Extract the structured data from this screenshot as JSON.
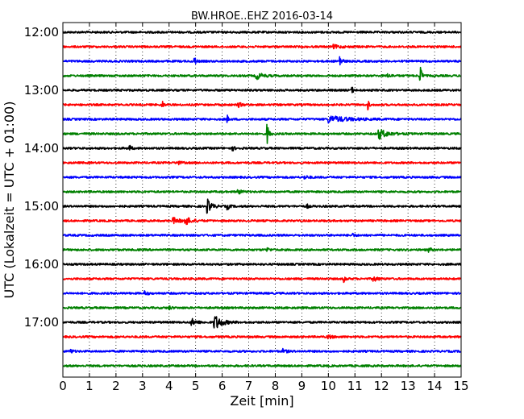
{
  "chart_data": {
    "type": "line",
    "title": "BW.HROE..EHZ 2016-03-14",
    "xlabel": "Zeit  [min]",
    "ylabel": "UTC (Lokalzeit = UTC + 01:00)",
    "xlim": [
      0,
      15
    ],
    "x_ticks": [
      "0",
      "1",
      "2",
      "3",
      "4",
      "5",
      "6",
      "7",
      "8",
      "9",
      "10",
      "11",
      "12",
      "13",
      "14",
      "15"
    ],
    "y_ticks": [
      "12:00",
      "13:00",
      "14:00",
      "15:00",
      "16:00",
      "17:00"
    ],
    "grid": "vertical dotted",
    "trace_interval_min": 15,
    "colors": [
      "#000000",
      "#ff0000",
      "#0000ff",
      "#008000"
    ],
    "series": [
      {
        "start": "12:00",
        "color": "#000000",
        "events": []
      },
      {
        "start": "12:15",
        "color": "#ff0000",
        "events": [
          {
            "t": 10.2,
            "amp": 0.2,
            "dur": 0.6
          }
        ]
      },
      {
        "start": "12:30",
        "color": "#0000ff",
        "events": [
          {
            "t": 4.95,
            "amp": 0.6,
            "dur": 0.15
          },
          {
            "t": 10.45,
            "amp": 0.8,
            "dur": 0.15
          }
        ]
      },
      {
        "start": "12:45",
        "color": "#008000",
        "events": [
          {
            "t": 7.3,
            "amp": 0.45,
            "dur": 0.5
          },
          {
            "t": 12.2,
            "amp": 0.2,
            "dur": 0.4
          },
          {
            "t": 13.45,
            "amp": 2.0,
            "dur": 0.12
          }
        ]
      },
      {
        "start": "13:00",
        "color": "#000000",
        "events": [
          {
            "t": 10.9,
            "amp": 0.4,
            "dur": 0.1
          }
        ]
      },
      {
        "start": "13:15",
        "color": "#ff0000",
        "events": [
          {
            "t": 3.75,
            "amp": 0.5,
            "dur": 0.1
          },
          {
            "t": 6.6,
            "amp": 0.3,
            "dur": 0.3
          },
          {
            "t": 11.5,
            "amp": 0.6,
            "dur": 0.1
          }
        ]
      },
      {
        "start": "13:30",
        "color": "#0000ff",
        "events": [
          {
            "t": 6.2,
            "amp": 0.45,
            "dur": 0.1
          },
          {
            "t": 10.0,
            "amp": 0.45,
            "dur": 1.6
          }
        ]
      },
      {
        "start": "13:45",
        "color": "#008000",
        "events": [
          {
            "t": 7.7,
            "amp": 1.3,
            "dur": 0.15
          },
          {
            "t": 11.9,
            "amp": 0.7,
            "dur": 0.7
          }
        ]
      },
      {
        "start": "14:00",
        "color": "#000000",
        "events": [
          {
            "t": 2.5,
            "amp": 0.5,
            "dur": 0.15
          },
          {
            "t": 6.4,
            "amp": 0.25,
            "dur": 0.2
          }
        ]
      },
      {
        "start": "14:15",
        "color": "#ff0000",
        "events": [
          {
            "t": 4.3,
            "amp": 0.25,
            "dur": 0.3
          }
        ]
      },
      {
        "start": "14:30",
        "color": "#0000ff",
        "events": [
          {
            "t": 9.1,
            "amp": 0.2,
            "dur": 0.4
          }
        ]
      },
      {
        "start": "14:45",
        "color": "#008000",
        "events": [
          {
            "t": 6.6,
            "amp": 0.3,
            "dur": 0.3
          }
        ]
      },
      {
        "start": "15:00",
        "color": "#000000",
        "events": [
          {
            "t": 5.45,
            "amp": 0.9,
            "dur": 0.35
          },
          {
            "t": 6.2,
            "amp": 0.4,
            "dur": 0.2
          },
          {
            "t": 9.2,
            "amp": 0.3,
            "dur": 0.1
          }
        ]
      },
      {
        "start": "15:15",
        "color": "#ff0000",
        "events": [
          {
            "t": 4.15,
            "amp": 0.4,
            "dur": 0.5
          },
          {
            "t": 4.6,
            "amp": 0.55,
            "dur": 0.5
          }
        ]
      },
      {
        "start": "15:30",
        "color": "#0000ff",
        "events": [
          {
            "t": 10.9,
            "amp": 0.25,
            "dur": 0.2
          }
        ]
      },
      {
        "start": "15:45",
        "color": "#008000",
        "events": [
          {
            "t": 7.7,
            "amp": 0.25,
            "dur": 0.2
          },
          {
            "t": 13.8,
            "amp": 0.25,
            "dur": 0.2
          }
        ]
      },
      {
        "start": "16:00",
        "color": "#000000",
        "events": []
      },
      {
        "start": "16:15",
        "color": "#ff0000",
        "events": [
          {
            "t": 10.6,
            "amp": 0.4,
            "dur": 0.15
          },
          {
            "t": 11.7,
            "amp": 0.3,
            "dur": 0.4
          }
        ]
      },
      {
        "start": "16:30",
        "color": "#0000ff",
        "events": [
          {
            "t": 3.1,
            "amp": 0.3,
            "dur": 0.2
          }
        ]
      },
      {
        "start": "16:45",
        "color": "#008000",
        "events": [
          {
            "t": 4.0,
            "amp": 0.25,
            "dur": 0.2
          }
        ]
      },
      {
        "start": "17:00",
        "color": "#000000",
        "events": [
          {
            "t": 4.85,
            "amp": 0.45,
            "dur": 0.4
          },
          {
            "t": 5.7,
            "amp": 1.1,
            "dur": 0.6
          }
        ]
      },
      {
        "start": "17:15",
        "color": "#ff0000",
        "events": [
          {
            "t": 10.0,
            "amp": 0.25,
            "dur": 0.3
          }
        ]
      },
      {
        "start": "17:30",
        "color": "#0000ff",
        "events": [
          {
            "t": 0.3,
            "amp": 0.25,
            "dur": 0.2
          },
          {
            "t": 8.3,
            "amp": 0.25,
            "dur": 0.3
          }
        ]
      },
      {
        "start": "17:45",
        "color": "#008000",
        "events": []
      }
    ]
  }
}
